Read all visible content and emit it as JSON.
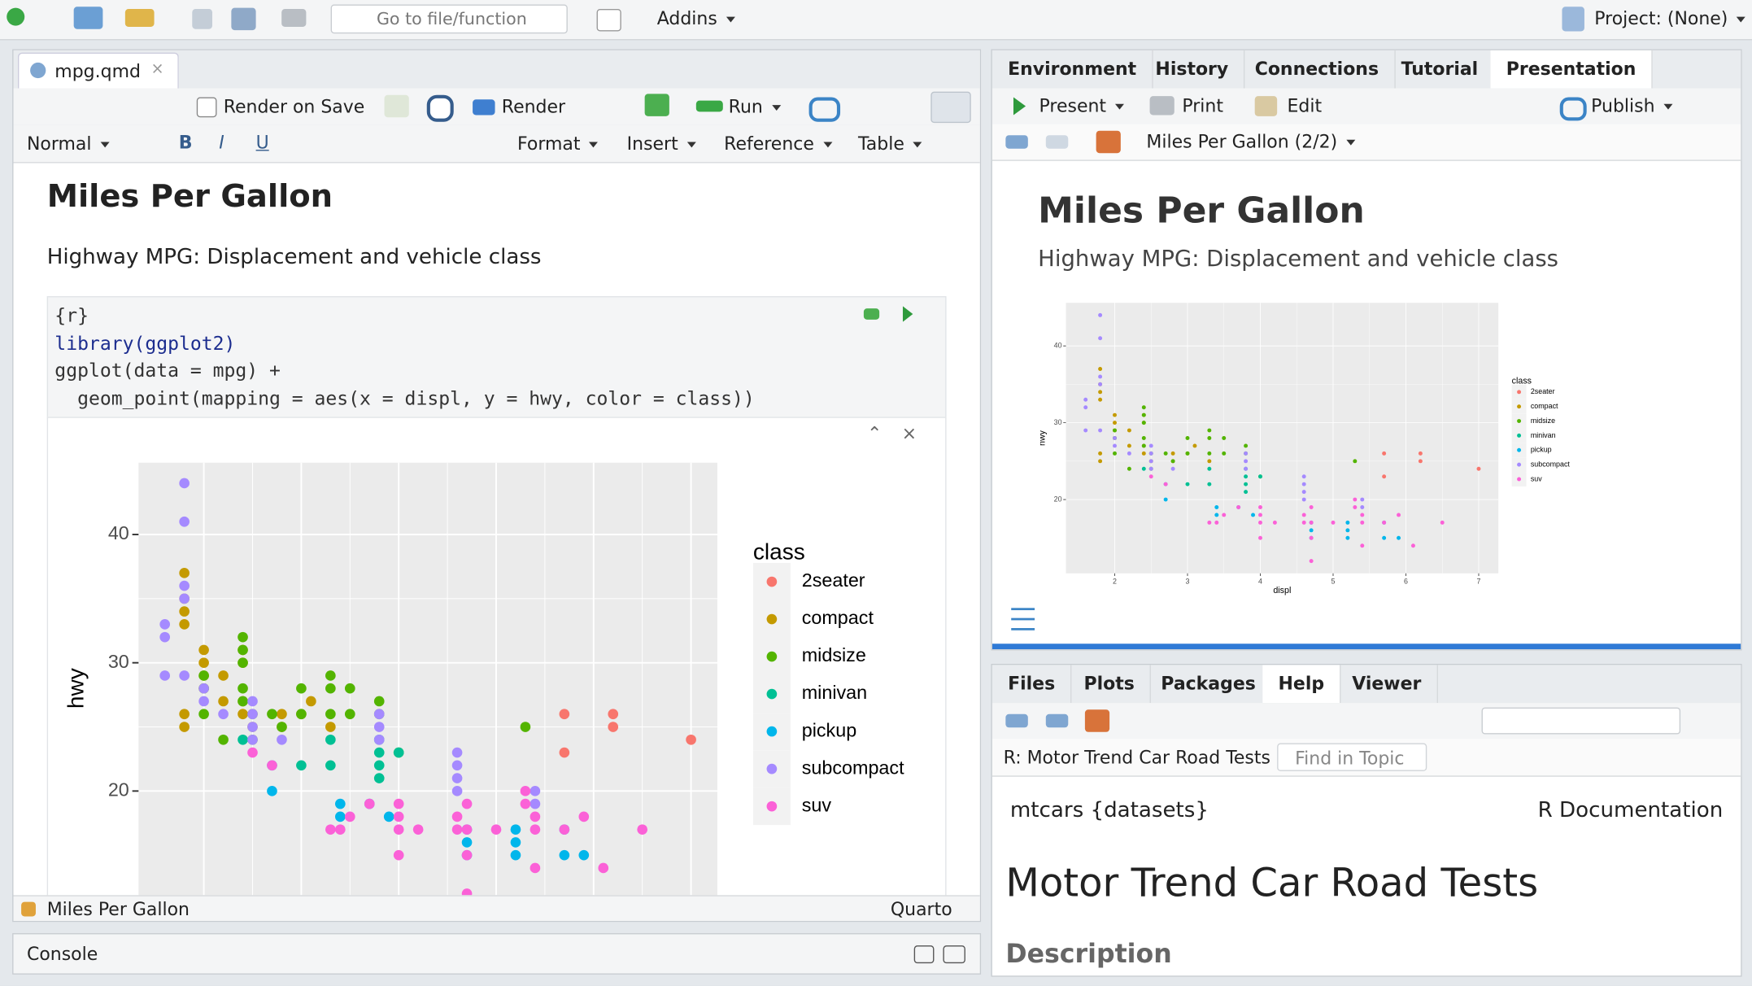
{
  "toolbar": {
    "go_to": "Go to file/function",
    "addins": "Addins",
    "project": "Project: (None)"
  },
  "editor": {
    "tab": "mpg.qmd",
    "toolbar": {
      "render_on_save": "Render on Save",
      "render": "Render",
      "run": "Run"
    },
    "format_bar": [
      "Normal",
      "Format",
      "Insert",
      "Reference",
      "Table"
    ],
    "heading": "Miles Per Gallon",
    "subtitle": "Highway MPG: Displacement and vehicle class",
    "code": [
      "{r}",
      "library(ggplot2)",
      "ggplot(data = mpg) +",
      "  geom_point(mapping = aes(x = displ, y = hwy, color = class))"
    ],
    "status": {
      "section": "Miles Per Gallon",
      "mode": "Quarto"
    }
  },
  "console": {
    "title": "Console"
  },
  "top_right": {
    "tabs": [
      "Environment",
      "History",
      "Connections",
      "Tutorial",
      "Presentation"
    ],
    "toolbar": {
      "present": "Present",
      "print": "Print",
      "edit": "Edit",
      "publish": "Publish"
    },
    "nav": "Miles Per Gallon (2/2)",
    "heading": "Miles Per Gallon",
    "subtitle": "Highway MPG: Displacement and vehicle class"
  },
  "bottom_right": {
    "tabs": [
      "Files",
      "Plots",
      "Packages",
      "Help",
      "Viewer"
    ],
    "topic": "R: Motor Trend Car Road Tests",
    "find": "Find in Topic",
    "doc_left": "mtcars {datasets}",
    "doc_right": "R Documentation",
    "doc_title": "Motor Trend Car Road Tests",
    "section": "Description"
  },
  "chart_data": {
    "type": "scatter",
    "x_label": "displ",
    "y_label": "hwy",
    "legend_title": "class",
    "legend": "right",
    "grid": true,
    "xlim": [
      1.33,
      7.27
    ],
    "ylim": [
      10.4,
      45.6
    ],
    "xticks": [
      2,
      3,
      4,
      5,
      6,
      7
    ],
    "yticks": [
      20,
      30,
      40
    ],
    "series": [
      {
        "name": "2seater",
        "color": "#F8766D",
        "x": [
          5.7,
          5.7,
          6.2,
          6.2,
          7.0
        ],
        "values": [
          26,
          23,
          26,
          25,
          24
        ]
      },
      {
        "name": "compact",
        "color": "#C49A00",
        "x": [
          1.8,
          1.8,
          1.8,
          1.8,
          1.8,
          1.8,
          2.0,
          2.0,
          2.0,
          2.0,
          2.2,
          2.2,
          2.4,
          2.4,
          2.4,
          2.4,
          2.5,
          2.8,
          2.8,
          3.0,
          3.1,
          3.3
        ],
        "values": [
          37,
          35,
          34,
          33,
          26,
          25,
          31,
          30,
          29,
          28,
          29,
          27,
          31,
          30,
          27,
          26,
          25,
          26,
          25,
          26,
          27,
          25
        ]
      },
      {
        "name": "midsize",
        "color": "#53B400",
        "x": [
          2.0,
          2.0,
          2.0,
          2.2,
          2.4,
          2.4,
          2.4,
          2.4,
          2.4,
          2.5,
          2.5,
          2.7,
          2.8,
          3.0,
          3.0,
          3.3,
          3.3,
          3.3,
          3.5,
          3.5,
          3.8,
          3.8,
          4.0,
          5.3
        ],
        "values": [
          29,
          28,
          26,
          24,
          32,
          31,
          30,
          28,
          27,
          26,
          24,
          26,
          25,
          28,
          26,
          29,
          28,
          26,
          28,
          26,
          27,
          26,
          23,
          25
        ]
      },
      {
        "name": "minivan",
        "color": "#00C094",
        "x": [
          2.4,
          3.0,
          3.3,
          3.3,
          3.8,
          3.8,
          3.8,
          3.8,
          4.0
        ],
        "values": [
          24,
          22,
          24,
          22,
          24,
          23,
          22,
          21,
          23
        ]
      },
      {
        "name": "pickup",
        "color": "#00B6EB",
        "x": [
          2.7,
          2.7,
          3.4,
          3.4,
          3.7,
          3.9,
          4.7,
          4.7,
          4.7,
          5.2,
          5.2,
          5.2,
          5.7,
          5.7,
          5.9
        ],
        "values": [
          22,
          20,
          19,
          18,
          19,
          18,
          17,
          16,
          15,
          17,
          16,
          15,
          17,
          15,
          15
        ]
      },
      {
        "name": "subcompact",
        "color": "#A58AFF",
        "x": [
          1.6,
          1.6,
          1.6,
          1.8,
          1.8,
          1.8,
          1.8,
          1.8,
          2.0,
          2.0,
          2.2,
          2.5,
          2.5,
          2.5,
          2.5,
          2.8,
          3.8,
          3.8,
          3.8,
          4.6,
          4.6,
          4.6,
          4.6,
          5.4,
          5.4
        ],
        "values": [
          33,
          32,
          29,
          44,
          41,
          36,
          35,
          29,
          28,
          27,
          26,
          27,
          26,
          25,
          24,
          24,
          26,
          25,
          24,
          23,
          22,
          21,
          20,
          20,
          19
        ]
      },
      {
        "name": "suv",
        "color": "#FB61D7",
        "x": [
          2.5,
          2.7,
          3.3,
          3.4,
          3.5,
          3.7,
          4.0,
          4.0,
          4.0,
          4.0,
          4.2,
          4.6,
          4.6,
          4.7,
          4.7,
          4.7,
          5.0,
          5.3,
          5.3,
          5.4,
          5.4,
          5.4,
          5.7,
          5.9,
          6.1,
          6.5,
          4.7
        ],
        "values": [
          23,
          22,
          17,
          17,
          18,
          19,
          17,
          18,
          19,
          15,
          17,
          18,
          17,
          19,
          17,
          15,
          17,
          20,
          19,
          18,
          17,
          14,
          17,
          18,
          14,
          17,
          12
        ]
      }
    ]
  }
}
